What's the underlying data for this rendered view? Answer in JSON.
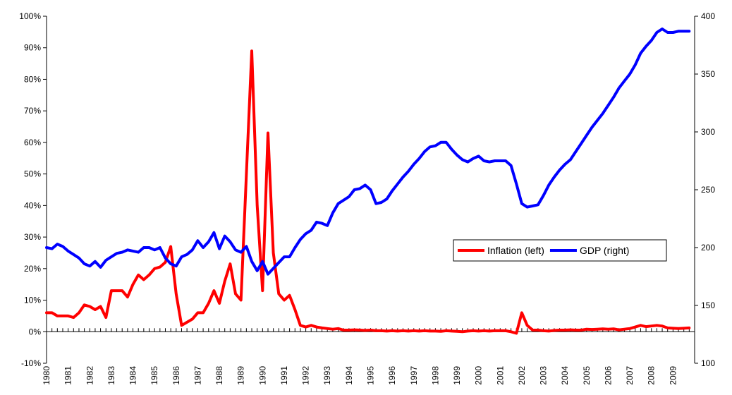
{
  "chart_data": {
    "type": "line",
    "categories": [
      "1980",
      null,
      null,
      null,
      "1981",
      null,
      null,
      null,
      "1982",
      null,
      null,
      null,
      "1983",
      null,
      null,
      null,
      "1984",
      null,
      null,
      null,
      "1985",
      null,
      null,
      null,
      "1986",
      null,
      null,
      null,
      "1987",
      null,
      null,
      null,
      "1988",
      null,
      null,
      null,
      "1989",
      null,
      null,
      null,
      "1990",
      null,
      null,
      null,
      "1991",
      null,
      null,
      null,
      "1992",
      null,
      null,
      null,
      "1993",
      null,
      null,
      null,
      "1994",
      null,
      null,
      null,
      "1995",
      null,
      null,
      null,
      "1996",
      null,
      null,
      null,
      "1997",
      null,
      null,
      null,
      "1998",
      null,
      null,
      null,
      "1999",
      null,
      null,
      null,
      "2000",
      null,
      null,
      null,
      "2001",
      null,
      null,
      null,
      "2002",
      null,
      null,
      null,
      "2003",
      null,
      null,
      null,
      "2004",
      null,
      null,
      null,
      "2005",
      null,
      null,
      null,
      "2006",
      null,
      null,
      null,
      "2007",
      null,
      null,
      null,
      "2008",
      null,
      null,
      null,
      "2009",
      null,
      null,
      null
    ],
    "series": [
      {
        "name": "Inflation (left)",
        "color": "#ff0000",
        "axis": "y",
        "values": [
          6,
          6,
          5,
          5,
          5,
          4.5,
          6,
          8.5,
          8,
          7,
          8,
          4.5,
          13,
          13,
          13,
          11,
          15,
          18,
          16.5,
          18,
          20,
          20.5,
          22,
          27,
          12,
          2,
          3,
          4,
          6,
          6,
          9,
          13,
          9,
          16,
          21.5,
          12,
          10,
          50,
          89,
          40,
          13,
          63,
          25,
          12,
          10,
          11.5,
          7,
          2,
          1.5,
          2,
          1.5,
          1.2,
          1,
          0.8,
          1,
          0.5,
          0.5,
          0.6,
          0.5,
          0.4,
          0.5,
          0.3,
          0.3,
          0.2,
          0.3,
          0.2,
          0.3,
          0.2,
          0.3,
          0.2,
          0.3,
          0.2,
          0.2,
          0.1,
          0.3,
          0.2,
          0.1,
          0,
          0.2,
          0.3,
          0.2,
          0.3,
          0.2,
          0.3,
          0.3,
          0.3,
          0,
          -0.5,
          6,
          2,
          0.5,
          0.5,
          0.3,
          0.2,
          0.4,
          0.5,
          0.5,
          0.6,
          0.5,
          0.5,
          0.8,
          0.7,
          0.8,
          0.9,
          0.8,
          0.9,
          0.6,
          0.8,
          1,
          1.5,
          2,
          1.6,
          1.8,
          2,
          1.8,
          1.2,
          1.1,
          1,
          1.1,
          1.2
        ]
      },
      {
        "name": "GDP (right)",
        "color": "#0000ff",
        "axis": "y2",
        "values": [
          200,
          199,
          203,
          201,
          197,
          194,
          191,
          186,
          184,
          188,
          183,
          189,
          192,
          195,
          196,
          198,
          197,
          196,
          200,
          200,
          198,
          200,
          191,
          186,
          184,
          192,
          194,
          198,
          206,
          200,
          205,
          213,
          199,
          210,
          205,
          198,
          196,
          201,
          188,
          180,
          188,
          177,
          182,
          187,
          192,
          192,
          200,
          207,
          212,
          215,
          222,
          221,
          219,
          230,
          238,
          241,
          244,
          250,
          251,
          254,
          250,
          238,
          239,
          242,
          249,
          255,
          261,
          266,
          272,
          277,
          283,
          287,
          288,
          291,
          291,
          285,
          280,
          276,
          274,
          277,
          279,
          275,
          274,
          275,
          275,
          275,
          271,
          255,
          238,
          235,
          236,
          237,
          245,
          254,
          261,
          267,
          272,
          276,
          283,
          290,
          297,
          304,
          310,
          316,
          323,
          330,
          338,
          344,
          350,
          358,
          368,
          374,
          379,
          386,
          389,
          386,
          386,
          387,
          387,
          387
        ]
      }
    ],
    "ylim": [
      -10,
      100
    ],
    "yticks": [
      {
        "value": -10,
        "label": "-10%"
      },
      {
        "value": 0,
        "label": "0%"
      },
      {
        "value": 10,
        "label": "10%"
      },
      {
        "value": 20,
        "label": "20%"
      },
      {
        "value": 30,
        "label": "30%"
      },
      {
        "value": 40,
        "label": "40%"
      },
      {
        "value": 50,
        "label": "50%"
      },
      {
        "value": 60,
        "label": "60%"
      },
      {
        "value": 70,
        "label": "70%"
      },
      {
        "value": 80,
        "label": "80%"
      },
      {
        "value": 90,
        "label": "90%"
      },
      {
        "value": 100,
        "label": "100%"
      }
    ],
    "y2lim": [
      100,
      400
    ],
    "y2ticks": [
      100,
      150,
      200,
      250,
      300,
      350,
      400
    ],
    "grid": false,
    "legend": "right"
  }
}
